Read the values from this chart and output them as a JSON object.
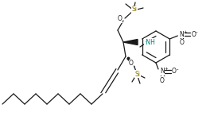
{
  "bg_color": "#ffffff",
  "line_color": "#1a1a1a",
  "si_color": "#8B7500",
  "nh_color": "#008080",
  "lw": 0.9,
  "figsize": [
    2.64,
    1.56
  ],
  "dpi": 100,
  "xlim": [
    0,
    264
  ],
  "ylim": [
    0,
    156
  ]
}
